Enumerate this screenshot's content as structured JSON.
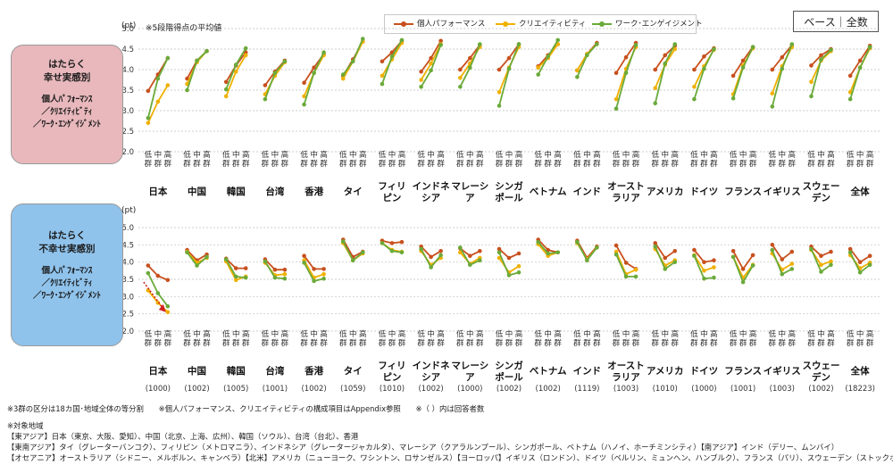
{
  "top_badge": "ベース｜全数",
  "legend": [
    {
      "name": "個人パフォーマンス",
      "color": "#c8501e"
    },
    {
      "name": "クリエイティビティ",
      "color": "#f0b000"
    },
    {
      "name": "ワーク･エンゲイジメント",
      "color": "#6aaa3a"
    }
  ],
  "panel_top": {
    "side_title": "はたらく\n幸せ実感別",
    "side_sub": "個人ﾊﾟﾌｫｰﾏﾝｽ\n／ｸﾘｴｲﾃｨﾋﾞﾃｨ\n／ﾜｰｸ･ｴﾝｹﾞｲｼﾞﾒﾝﾄ",
    "y_unit": "(pt)",
    "y_note": "※5段階得点の平均値"
  },
  "panel_bottom": {
    "side_title": "はたらく\n不幸せ実感別",
    "side_sub": "個人ﾊﾟﾌｫｰﾏﾝｽ\n／ｸﾘｴｲﾃｨﾋﾞﾃｨ\n／ﾜｰｸ･ｴﾝｹﾞｲｼﾞﾒﾝﾄ",
    "y_unit": "(pt)"
  },
  "group_labels": [
    "低群",
    "中群",
    "高群"
  ],
  "countries": [
    "日本",
    "中国",
    "韓国",
    "台湾",
    "香港",
    "タイ",
    "フィリピン",
    "インドネシア",
    "マレーシア",
    "シンガポール",
    "ベトナム",
    "インド",
    "オーストラリア",
    "アメリカ",
    "ドイツ",
    "フランス",
    "イギリス",
    "スウェーデン",
    "全体"
  ],
  "country_display": [
    "日本",
    "中国",
    "韓国",
    "台湾",
    "香港",
    "タイ",
    "フィリ\nピン",
    "インドネ\nシア",
    "マレーシ\nア",
    "シンガ\nポール",
    "ベトナム",
    "インド",
    "オースト\nラリア",
    "アメリカ",
    "ドイツ",
    "フランス",
    "イギリス",
    "スウェー\nデン",
    "全体"
  ],
  "sample_sizes": [
    "(1000)",
    "(1002)",
    "(1005)",
    "(1001)",
    "(1002)",
    "(1059)",
    "(1010)",
    "(1002)",
    "(1000)",
    "(1002)",
    "(1002)",
    "(1119)",
    "(1003)",
    "(1010)",
    "(1000)",
    "(1001)",
    "(1003)",
    "(1002)",
    "(18223)"
  ],
  "chart_data": [
    {
      "type": "line",
      "title": "はたらく幸せ実感別",
      "ylabel": "(pt)",
      "ylim": [
        2.0,
        5.0
      ],
      "yticks": [
        2.0,
        2.5,
        3.0,
        3.5,
        4.0,
        4.5,
        5.0
      ],
      "x": [
        "低群",
        "中群",
        "高群"
      ],
      "series": [
        {
          "name": "個人パフォーマンス",
          "values": [
            [
              3.48,
              3.88,
              4.28
            ],
            [
              3.78,
              4.22,
              4.45
            ],
            [
              3.7,
              4.1,
              4.42
            ],
            [
              3.62,
              3.95,
              4.22
            ],
            [
              3.68,
              4.05,
              4.38
            ],
            [
              3.85,
              4.25,
              4.68
            ],
            [
              4.2,
              4.42,
              4.7
            ],
            [
              3.95,
              4.28,
              4.7
            ],
            [
              4.0,
              4.28,
              4.6
            ],
            [
              4.0,
              4.28,
              4.62
            ],
            [
              4.08,
              4.35,
              4.62
            ],
            [
              3.98,
              4.38,
              4.65
            ],
            [
              3.92,
              4.3,
              4.65
            ],
            [
              4.0,
              4.35,
              4.58
            ],
            [
              4.0,
              4.32,
              4.52
            ],
            [
              3.85,
              4.22,
              4.55
            ],
            [
              4.0,
              4.3,
              4.6
            ],
            [
              4.1,
              4.35,
              4.5
            ],
            [
              3.85,
              4.22,
              4.58
            ]
          ]
        },
        {
          "name": "クリエイティビティ",
          "values": [
            [
              2.7,
              3.22,
              3.62
            ],
            [
              3.65,
              4.18,
              4.45
            ],
            [
              3.35,
              3.95,
              4.35
            ],
            [
              3.4,
              3.85,
              4.18
            ],
            [
              3.35,
              3.92,
              4.35
            ],
            [
              3.78,
              4.2,
              4.68
            ],
            [
              3.85,
              4.25,
              4.65
            ],
            [
              3.75,
              4.15,
              4.62
            ],
            [
              3.8,
              4.15,
              4.55
            ],
            [
              3.45,
              4.05,
              4.55
            ],
            [
              4.05,
              4.28,
              4.62
            ],
            [
              3.98,
              4.38,
              4.62
            ],
            [
              3.28,
              4.02,
              4.55
            ],
            [
              3.55,
              4.12,
              4.5
            ],
            [
              3.58,
              4.08,
              4.48
            ],
            [
              3.4,
              4.1,
              4.52
            ],
            [
              3.42,
              4.08,
              4.55
            ],
            [
              3.7,
              4.22,
              4.45
            ],
            [
              3.45,
              4.05,
              4.52
            ]
          ]
        },
        {
          "name": "ワーク･エンゲイジメント",
          "values": [
            [
              2.82,
              3.78,
              4.28
            ],
            [
              3.5,
              4.22,
              4.45
            ],
            [
              3.52,
              4.12,
              4.52
            ],
            [
              3.28,
              3.92,
              4.2
            ],
            [
              3.15,
              3.92,
              4.42
            ],
            [
              3.88,
              4.2,
              4.75
            ],
            [
              3.65,
              4.32,
              4.72
            ],
            [
              3.58,
              3.98,
              4.6
            ],
            [
              3.58,
              4.05,
              4.62
            ],
            [
              3.12,
              4.02,
              4.62
            ],
            [
              3.88,
              4.32,
              4.72
            ],
            [
              3.82,
              4.35,
              4.62
            ],
            [
              3.05,
              3.92,
              4.6
            ],
            [
              3.18,
              4.15,
              4.62
            ],
            [
              3.28,
              4.02,
              4.5
            ],
            [
              3.3,
              4.05,
              4.55
            ],
            [
              3.1,
              4.02,
              4.62
            ],
            [
              3.35,
              4.25,
              4.48
            ],
            [
              3.28,
              4.05,
              4.55
            ]
          ]
        }
      ]
    },
    {
      "type": "line",
      "title": "はたらく不幸せ実感別",
      "ylabel": "(pt)",
      "ylim": [
        2.0,
        5.0
      ],
      "yticks": [
        2.0,
        2.5,
        3.0,
        3.5,
        4.0,
        4.5,
        5.0
      ],
      "x": [
        "低群",
        "中群",
        "高群"
      ],
      "series": [
        {
          "name": "個人パフォーマンス",
          "values": [
            [
              3.9,
              3.6,
              3.48
            ],
            [
              4.35,
              4.05,
              4.22
            ],
            [
              4.1,
              3.82,
              3.82
            ],
            [
              4.08,
              3.78,
              3.78
            ],
            [
              4.18,
              3.8,
              3.8
            ],
            [
              4.65,
              4.15,
              4.3
            ],
            [
              4.62,
              4.55,
              4.58
            ],
            [
              4.45,
              4.15,
              4.32
            ],
            [
              4.4,
              4.18,
              4.32
            ],
            [
              4.38,
              4.12,
              4.25
            ],
            [
              4.65,
              4.35,
              4.28
            ],
            [
              4.62,
              4.12,
              4.45
            ],
            [
              4.48,
              3.98,
              3.8
            ],
            [
              4.55,
              4.12,
              4.32
            ],
            [
              4.35,
              4.0,
              4.05
            ],
            [
              4.32,
              3.8,
              4.2
            ],
            [
              4.5,
              4.08,
              4.3
            ],
            [
              4.45,
              4.18,
              4.3
            ],
            [
              4.38,
              4.0,
              4.18
            ]
          ]
        },
        {
          "name": "クリエイティビティ",
          "values": [
            [
              3.18,
              2.82,
              2.55
            ],
            [
              4.3,
              3.98,
              4.12
            ],
            [
              4.02,
              3.48,
              3.58
            ],
            [
              3.98,
              3.62,
              3.65
            ],
            [
              4.05,
              3.55,
              3.65
            ],
            [
              4.55,
              4.05,
              4.25
            ],
            [
              4.55,
              4.35,
              4.3
            ],
            [
              4.32,
              3.92,
              4.12
            ],
            [
              4.28,
              3.95,
              4.12
            ],
            [
              4.12,
              3.7,
              3.88
            ],
            [
              4.52,
              4.18,
              4.28
            ],
            [
              4.55,
              4.08,
              4.42
            ],
            [
              4.3,
              3.65,
              3.78
            ],
            [
              4.38,
              3.9,
              4.05
            ],
            [
              4.2,
              3.75,
              3.85
            ],
            [
              4.15,
              3.55,
              3.92
            ],
            [
              4.25,
              3.78,
              3.95
            ],
            [
              4.35,
              3.92,
              4.02
            ],
            [
              4.2,
              3.82,
              3.98
            ]
          ]
        },
        {
          "name": "ワーク･エンゲイジメント",
          "values": [
            [
              3.68,
              3.1,
              2.72
            ],
            [
              4.28,
              3.9,
              4.15
            ],
            [
              4.08,
              3.58,
              3.55
            ],
            [
              4.02,
              3.55,
              3.52
            ],
            [
              3.98,
              3.45,
              3.52
            ],
            [
              4.6,
              4.05,
              4.28
            ],
            [
              4.55,
              4.32,
              4.28
            ],
            [
              4.38,
              3.85,
              4.2
            ],
            [
              4.42,
              3.92,
              4.05
            ],
            [
              4.28,
              3.62,
              3.7
            ],
            [
              4.58,
              4.25,
              4.28
            ],
            [
              4.58,
              4.05,
              4.42
            ],
            [
              4.22,
              3.58,
              3.58
            ],
            [
              4.45,
              3.8,
              4.0
            ],
            [
              4.18,
              3.52,
              3.55
            ],
            [
              4.15,
              3.42,
              3.9
            ],
            [
              4.35,
              3.65,
              3.8
            ],
            [
              4.38,
              3.72,
              3.92
            ],
            [
              4.28,
              3.7,
              3.92
            ]
          ]
        }
      ]
    }
  ],
  "notes": [
    "※3群の区分は18カ国･地域全体の等分割　　※個人パフォーマンス、クリエイティビティの構成項目はAppendix参照　　※（ ）内は回答者数",
    "※対象地域",
    "【東アジア】日本（東京、大阪、愛知）、中国（北京、上海、広州）、韓国（ソウル）、台湾（台北）、香港",
    "【東南アジア】タイ（グレーターバンコク）、フィリピン（メトロマニラ）、インドネシア（グレータージャカルタ）、マレーシア（クアラルンプール）、シンガポール、ベトナム（ハノイ、ホーチミンシティ）【南アジア】インド（デリー、ムンバイ）",
    "【オセアニア】オーストラリア（シドニー、メルボルン、キャンベラ）【北米】アメリカ（ニューヨーク、ワシントン、ロサンゼルス）【ヨーロッパ】イギリス（ロンドン）、ドイツ（ベルリン、ミュンヘン、ハンブルク）、フランス（パリ）、スウェーデン（ストックホルム）"
  ]
}
